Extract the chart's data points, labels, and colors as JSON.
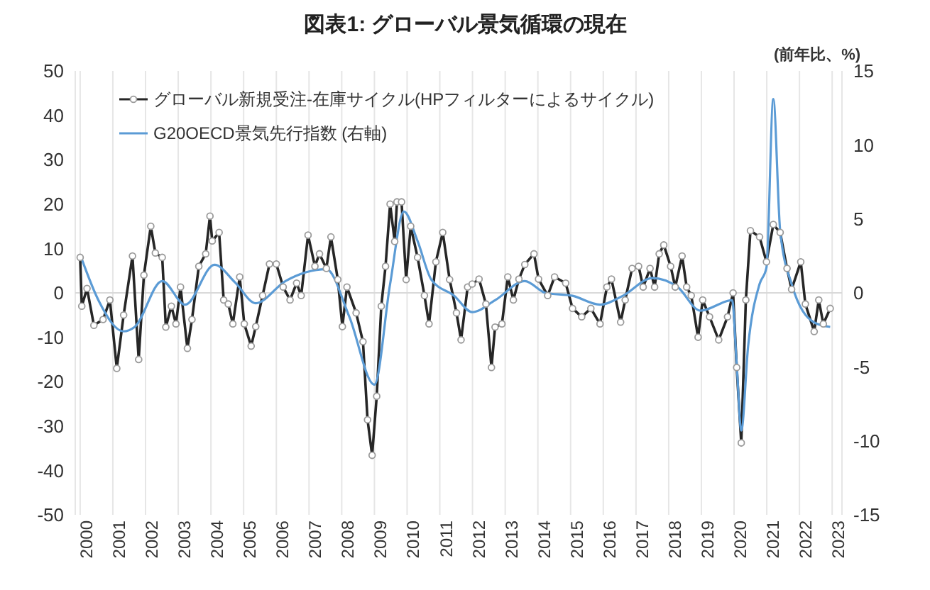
{
  "chart_data": {
    "type": "line",
    "title": "図表1: グローバル景気循環の現在",
    "y2label": "(前年比、%)",
    "xlim": [
      1999.85,
      2023.3
    ],
    "xticks": [
      2000,
      2001,
      2002,
      2003,
      2004,
      2005,
      2006,
      2007,
      2008,
      2009,
      2010,
      2011,
      2012,
      2013,
      2014,
      2015,
      2016,
      2017,
      2018,
      2019,
      2020,
      2021,
      2022,
      2023
    ],
    "ylim": [
      -50,
      50
    ],
    "yticks": [
      -50,
      -40,
      -30,
      -20,
      -10,
      0,
      10,
      20,
      30,
      40,
      50
    ],
    "y2lim": [
      -15,
      15
    ],
    "y2ticks": [
      -15,
      -10,
      -5,
      0,
      5,
      10,
      15
    ],
    "grid": "x",
    "legend": "top left",
    "ref_lines": [
      {
        "axis": "y",
        "value": 0,
        "color": "#d9d9d9"
      }
    ],
    "series": [
      {
        "name": "グローバル新規受注-在庫サイクル(HPフィルターによるサイクル)",
        "color": "#262626",
        "marker": "circle",
        "line_style": "solid",
        "x": [
          2000.0,
          2000.05,
          2000.21,
          2000.42,
          2000.7,
          2000.91,
          2001.12,
          2001.33,
          2001.6,
          2001.79,
          2001.95,
          2002.16,
          2002.3,
          2002.51,
          2002.62,
          2002.79,
          2002.93,
          2003.07,
          2003.28,
          2003.42,
          2003.63,
          2003.84,
          2003.97,
          2004.04,
          2004.25,
          2004.39,
          2004.53,
          2004.67,
          2004.88,
          2005.02,
          2005.23,
          2005.37,
          2005.58,
          2005.79,
          2006.0,
          2006.21,
          2006.42,
          2006.62,
          2006.76,
          2006.97,
          2007.18,
          2007.32,
          2007.53,
          2007.67,
          2007.88,
          2008.02,
          2008.16,
          2008.44,
          2008.65,
          2008.79,
          2008.93,
          2009.07,
          2009.21,
          2009.34,
          2009.48,
          2009.62,
          2009.69,
          2009.83,
          2009.97,
          2010.11,
          2010.32,
          2010.53,
          2010.67,
          2010.88,
          2011.09,
          2011.3,
          2011.51,
          2011.65,
          2011.85,
          2011.99,
          2012.2,
          2012.41,
          2012.58,
          2012.69,
          2012.9,
          2013.08,
          2013.25,
          2013.42,
          2013.6,
          2013.88,
          2014.02,
          2014.3,
          2014.51,
          2014.85,
          2015.06,
          2015.34,
          2015.62,
          2015.9,
          2016.11,
          2016.25,
          2016.53,
          2016.67,
          2016.88,
          2017.08,
          2017.22,
          2017.43,
          2017.57,
          2017.71,
          2017.85,
          2018.06,
          2018.2,
          2018.41,
          2018.55,
          2018.69,
          2018.9,
          2019.04,
          2019.25,
          2019.53,
          2019.8,
          2019.97,
          2020.08,
          2020.22,
          2020.36,
          2020.5,
          2020.78,
          2020.99,
          2021.2,
          2021.41,
          2021.62,
          2021.76,
          2022.04,
          2022.18,
          2022.45,
          2022.59,
          2022.73,
          2022.94
        ],
        "values": [
          8,
          -3,
          1,
          -7.3,
          -6,
          -1.6,
          -17,
          -5,
          8.3,
          -15,
          4,
          15,
          9,
          8,
          -7.7,
          -3,
          -7,
          1.3,
          -12.5,
          -6,
          6,
          8.8,
          17.3,
          11.7,
          13.6,
          -1.6,
          -2.5,
          -7,
          3.6,
          -7,
          -12,
          -7.6,
          -0.6,
          6.5,
          6.5,
          1.3,
          -1.6,
          2.2,
          -0.6,
          13,
          6,
          8.8,
          5.5,
          12.6,
          3,
          -7.6,
          1.3,
          -4.5,
          -11,
          -28.6,
          -36.6,
          -23.3,
          -3,
          6,
          20,
          11.6,
          20.5,
          20.5,
          3,
          15,
          8,
          -0.6,
          -7,
          7,
          13.6,
          3,
          -4.5,
          -10.6,
          1.3,
          2,
          3.1,
          -2.5,
          -16.8,
          -7.7,
          -7,
          3.6,
          -1.6,
          3.1,
          6.4,
          8.8,
          3.1,
          -0.6,
          3.6,
          2.2,
          -3.5,
          -5.4,
          -3.5,
          -7,
          1.3,
          3.1,
          -6.6,
          -1.6,
          5.5,
          6,
          1.3,
          5.5,
          1.3,
          8.8,
          10.8,
          6,
          1.3,
          8.3,
          1.3,
          -0.6,
          -10,
          -1.6,
          -5.4,
          -10.6,
          -5.4,
          0,
          -16.8,
          -33.8,
          -1.6,
          14,
          12.6,
          7,
          15.4,
          13.6,
          5.5,
          0.8,
          7,
          -2.5,
          -8.7,
          -1.6,
          -7,
          -3.5
        ]
      },
      {
        "name": "G20OECD景気先行指数 (右軸)",
        "color": "#5b9bd5",
        "axis": "y2",
        "marker": "none",
        "line_style": "solid",
        "x": [
          2000.03,
          2000.56,
          2001.33,
          2001.67,
          2002.51,
          2003.21,
          2004.11,
          2004.74,
          2005.37,
          2006.28,
          2007.53,
          2008.23,
          2009.0,
          2009.48,
          2009.9,
          2010.32,
          2010.74,
          2011.44,
          2011.99,
          2012.69,
          2013.6,
          2014.23,
          2015.06,
          2015.9,
          2016.6,
          2017.5,
          2018.27,
          2018.97,
          2019.94,
          2020.08,
          2020.22,
          2020.43,
          2020.78,
          2020.99,
          2021.2,
          2021.41,
          2021.76,
          2022.45,
          2022.94
        ],
        "values": [
          2.4,
          -0.5,
          -2.6,
          -2.3,
          0.8,
          -0.8,
          1.9,
          0.7,
          -0.7,
          0.8,
          1.6,
          -1.6,
          -6.2,
          0.6,
          5.5,
          3.5,
          0.9,
          -0.2,
          -1.3,
          -0.5,
          0.8,
          0,
          -0.2,
          -0.8,
          -0.2,
          1,
          0.4,
          -1.2,
          -0.5,
          -4.8,
          -9.3,
          -3.6,
          0.6,
          1.7,
          13.1,
          4.2,
          0.6,
          -2,
          -2.3
        ]
      }
    ]
  }
}
